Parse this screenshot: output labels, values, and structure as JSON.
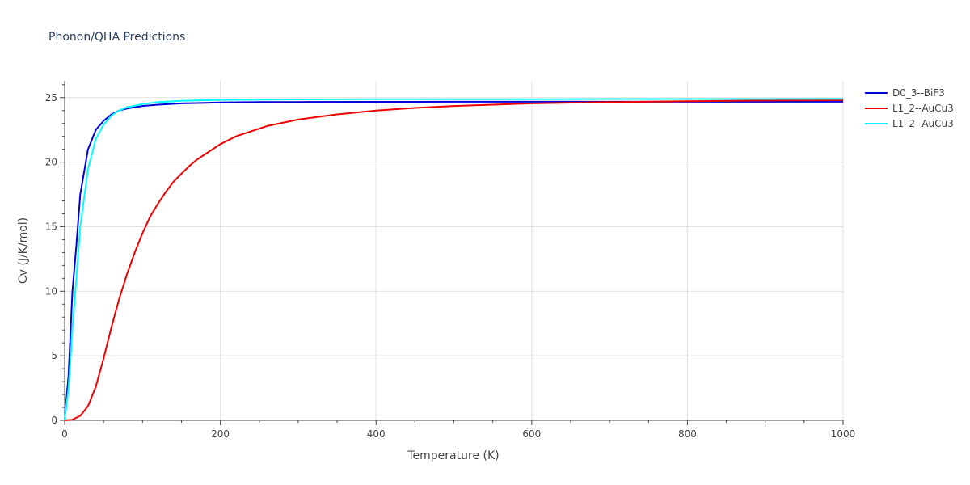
{
  "chart_data": {
    "type": "line",
    "title": "Phonon/QHA Predictions",
    "xlabel": "Temperature (K)",
    "ylabel": "Cv (J/K/mol)",
    "xlim": [
      0,
      1000
    ],
    "ylim": [
      0,
      26.3
    ],
    "x_ticks": [
      0,
      200,
      400,
      600,
      800,
      1000
    ],
    "y_ticks": [
      0,
      5,
      10,
      15,
      20,
      25
    ],
    "x_minor_ticks": [
      50,
      100,
      150,
      250,
      300,
      350,
      450,
      500,
      550,
      650,
      700,
      750,
      850,
      900,
      950
    ],
    "y_minor_ticks": [
      1,
      2,
      3,
      4,
      6,
      7,
      8,
      9,
      11,
      12,
      13,
      14,
      16,
      17,
      18,
      19,
      21,
      22,
      23,
      24,
      26
    ],
    "grid": true,
    "legend_position": "top-right",
    "series": [
      {
        "name": "D0_3--BiF3",
        "color": "#0000dd",
        "x": [
          0,
          5,
          10,
          15,
          20,
          30,
          40,
          50,
          60,
          70,
          80,
          100,
          120,
          150,
          200,
          250,
          300,
          400,
          500,
          600,
          700,
          800,
          900,
          1000
        ],
        "y": [
          0,
          3.5,
          10.0,
          13.5,
          17.5,
          21.0,
          22.5,
          23.2,
          23.7,
          24.0,
          24.15,
          24.35,
          24.45,
          24.55,
          24.62,
          24.65,
          24.66,
          24.67,
          24.68,
          24.68,
          24.68,
          24.68,
          24.68,
          24.68
        ]
      },
      {
        "name": "L1_2--AuCu3",
        "color": "#ee0000",
        "x": [
          0,
          10,
          20,
          30,
          40,
          50,
          60,
          70,
          80,
          90,
          100,
          110,
          120,
          130,
          140,
          150,
          160,
          170,
          180,
          200,
          220,
          240,
          260,
          300,
          350,
          400,
          450,
          500,
          600,
          700,
          800,
          900,
          1000
        ],
        "y": [
          0,
          0.05,
          0.35,
          1.1,
          2.6,
          4.8,
          7.2,
          9.4,
          11.3,
          13.0,
          14.5,
          15.8,
          16.8,
          17.7,
          18.5,
          19.1,
          19.7,
          20.2,
          20.6,
          21.4,
          22.0,
          22.4,
          22.8,
          23.3,
          23.7,
          24.0,
          24.2,
          24.35,
          24.55,
          24.65,
          24.72,
          24.77,
          24.8
        ]
      },
      {
        "name": "L1_2--AuCu3",
        "color": "#00ffff",
        "x": [
          0,
          5,
          10,
          15,
          20,
          30,
          40,
          50,
          60,
          70,
          80,
          100,
          120,
          150,
          200,
          250,
          300,
          400,
          500,
          600,
          700,
          800,
          900,
          1000
        ],
        "y": [
          0,
          2.5,
          7.0,
          11.0,
          15.0,
          19.5,
          21.8,
          22.9,
          23.6,
          24.0,
          24.25,
          24.5,
          24.65,
          24.75,
          24.82,
          24.85,
          24.86,
          24.87,
          24.88,
          24.88,
          24.89,
          24.89,
          24.89,
          24.9
        ]
      }
    ]
  }
}
